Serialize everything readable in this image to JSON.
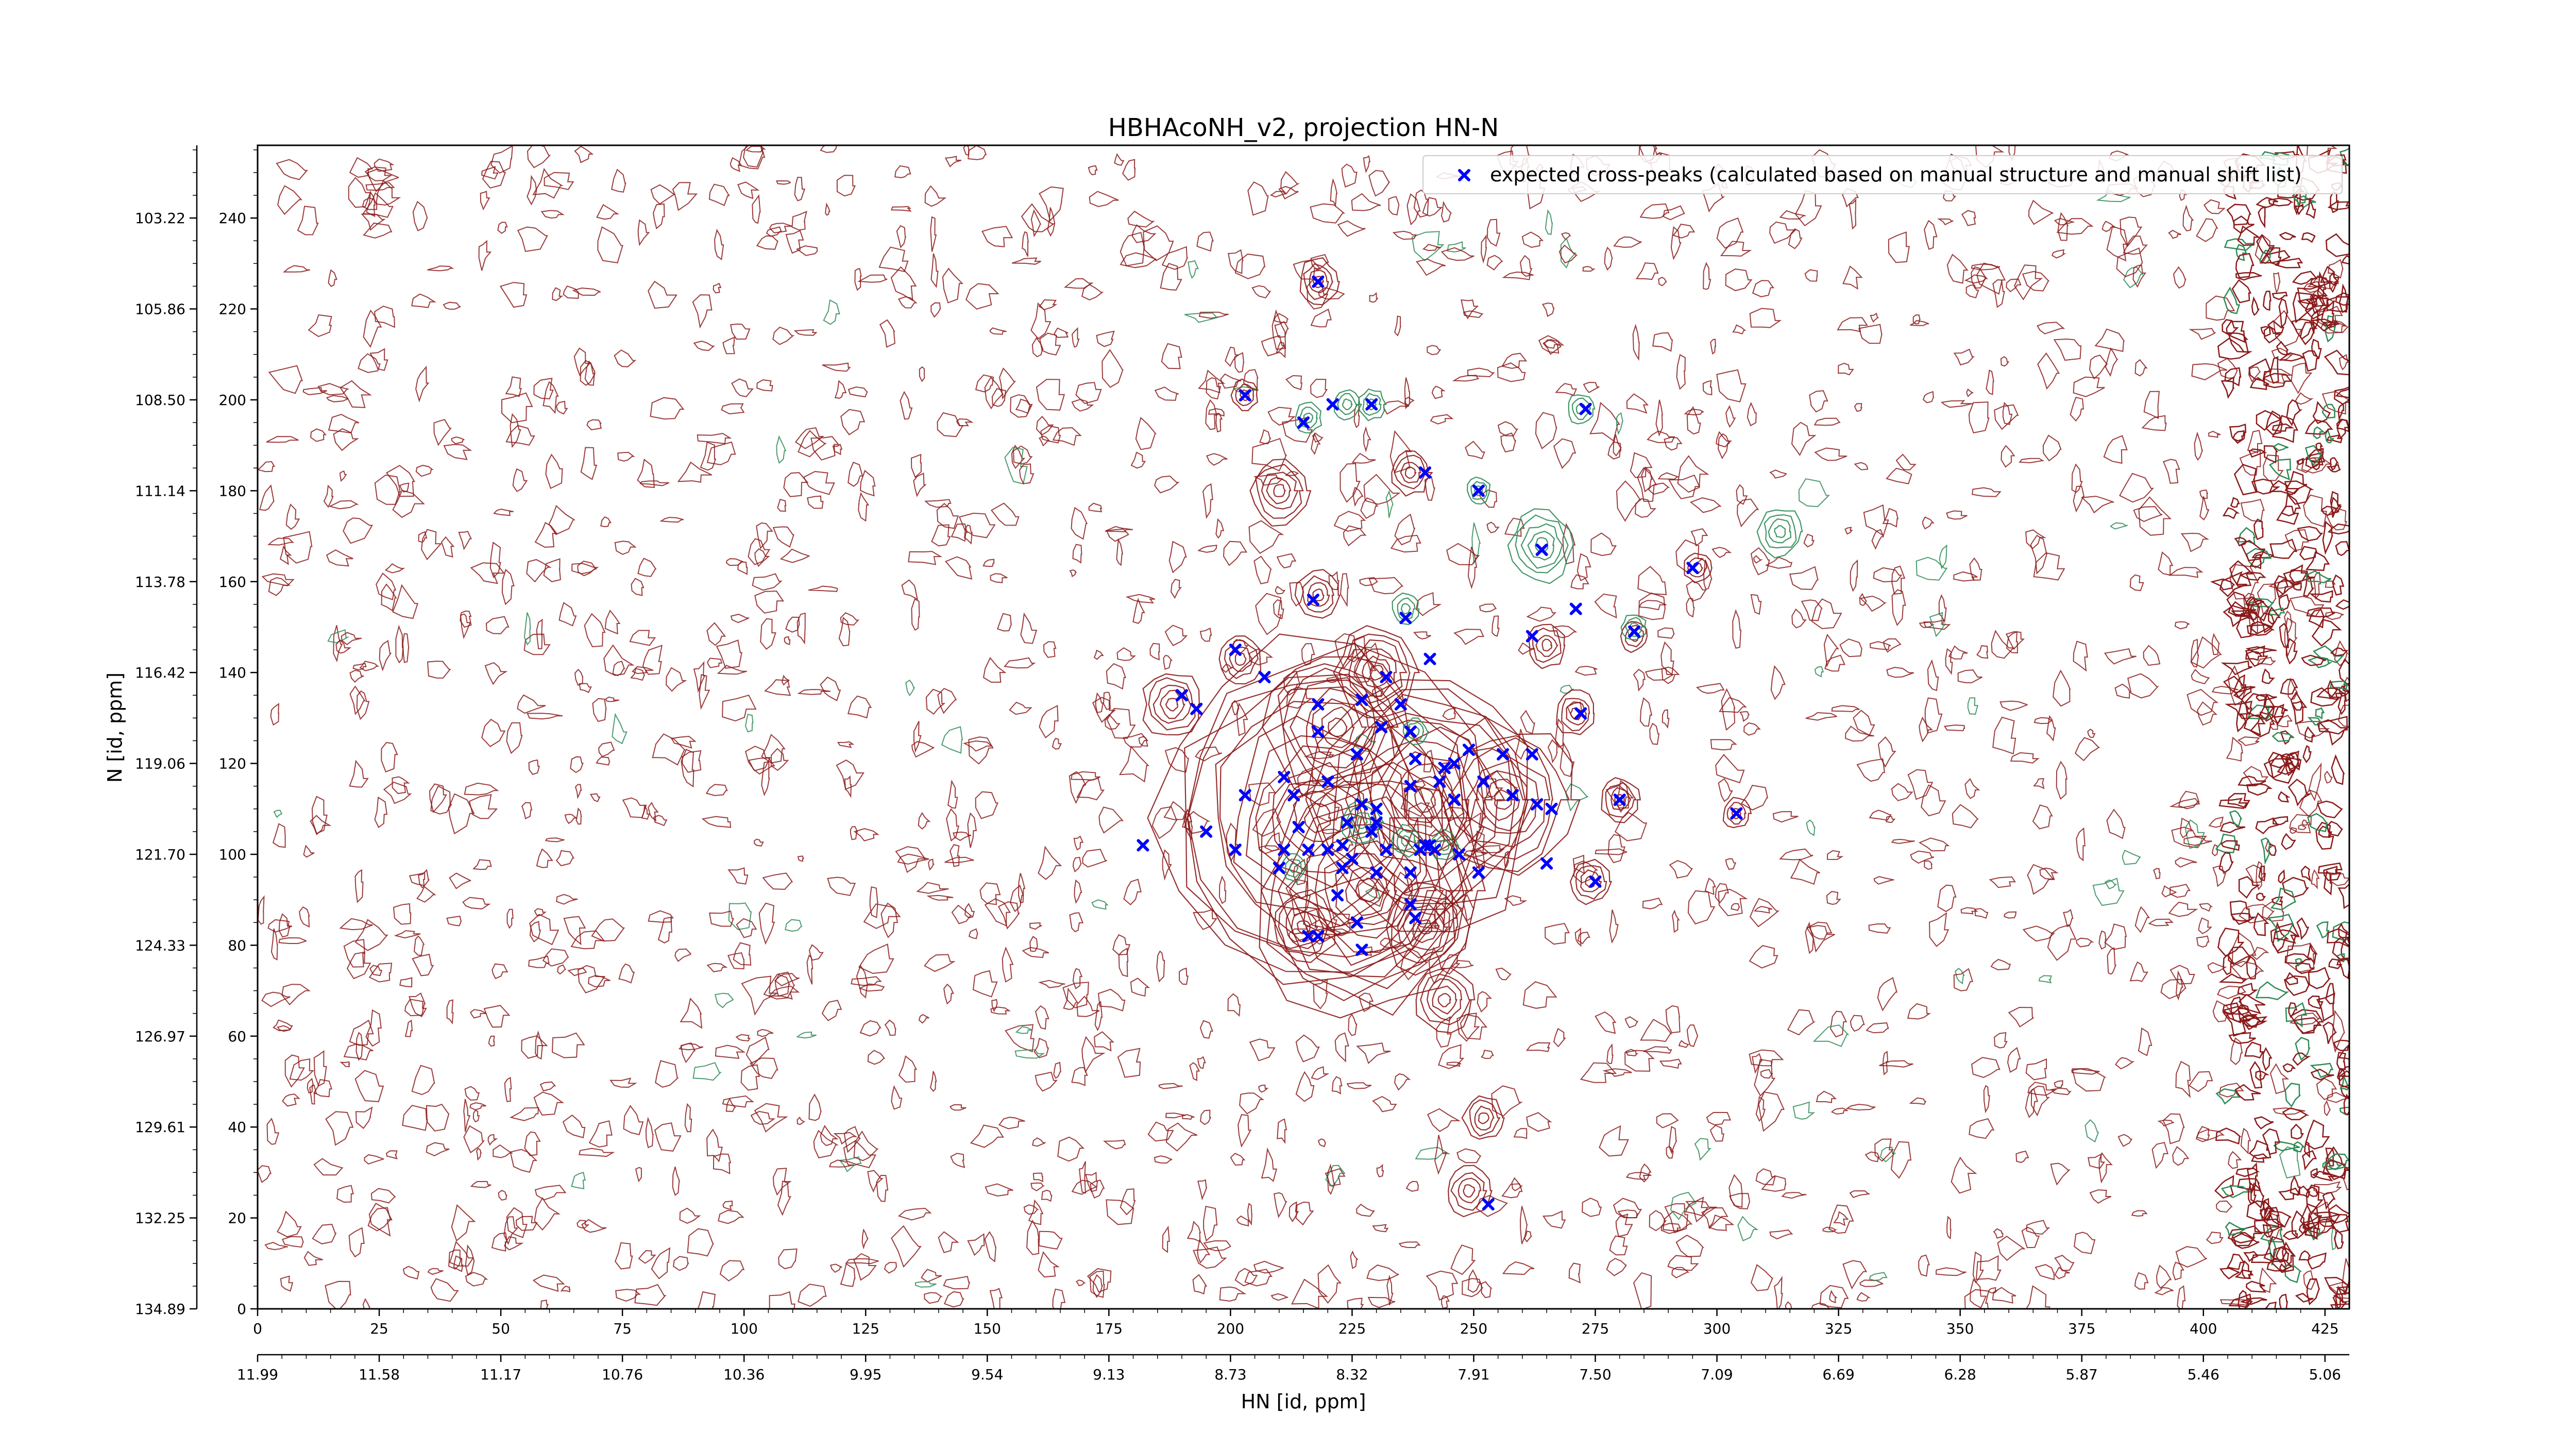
{
  "chart_data": {
    "type": "scatter",
    "title": "HBHAcoNH_v2, projection HN-N",
    "xlabel": "HN [id, ppm]",
    "ylabel": "N [id, ppm]",
    "xlim": [
      0,
      430
    ],
    "ylim": [
      0,
      256
    ],
    "grid": false,
    "legend_position": "top-right",
    "x_ticks_index": [
      0,
      25,
      50,
      75,
      100,
      125,
      150,
      175,
      200,
      225,
      250,
      275,
      300,
      325,
      350,
      375,
      400,
      425
    ],
    "x_ticks_ppm": [
      "11.99",
      "11.58",
      "11.17",
      "10.76",
      "10.36",
      "9.95",
      "9.54",
      "9.13",
      "8.73",
      "8.32",
      "7.91",
      "7.50",
      "7.09",
      "6.69",
      "6.28",
      "5.87",
      "5.46",
      "5.06"
    ],
    "y_ticks_index": [
      0,
      20,
      40,
      60,
      80,
      100,
      120,
      140,
      160,
      180,
      200,
      220,
      240
    ],
    "y_ticks_ppm": [
      "134.89",
      "132.25",
      "129.61",
      "126.97",
      "124.33",
      "121.70",
      "119.06",
      "116.42",
      "113.78",
      "111.14",
      "108.50",
      "105.86",
      "103.22"
    ],
    "colors": {
      "expected_peak": "#0000ff",
      "positive_contour": "#8b1a1a",
      "negative_contour": "#2e8b57"
    },
    "series": [
      {
        "name": "expected cross-peaks (calculated based on manual structure and manual shift list)",
        "marker": "x",
        "x": [
          218,
          203,
          215,
          221,
          229,
          240,
          251,
          273,
          264,
          217,
          236,
          271,
          295,
          262,
          283,
          201,
          207,
          241,
          227,
          232,
          235,
          190,
          193,
          218,
          231,
          226,
          237,
          272,
          262,
          218,
          249,
          256,
          244,
          246,
          238,
          203,
          213,
          211,
          220,
          227,
          230,
          237,
          243,
          246,
          252,
          258,
          263,
          266,
          280,
          304,
          230,
          224,
          211,
          223,
          229,
          214,
          216,
          220,
          225,
          232,
          239,
          241,
          240,
          201,
          182,
          195,
          210,
          223,
          230,
          237,
          242,
          247,
          251,
          265,
          275,
          222,
          237,
          226,
          216,
          218,
          227,
          238,
          253
        ],
        "y": [
          226,
          201,
          195,
          199,
          199,
          184,
          180,
          198,
          167,
          156,
          152,
          154,
          163,
          148,
          149,
          145,
          139,
          143,
          134,
          139,
          133,
          135,
          132,
          133,
          128,
          122,
          127,
          131,
          122,
          127,
          123,
          122,
          119,
          120,
          121,
          113,
          113,
          117,
          116,
          111,
          110,
          115,
          116,
          112,
          116,
          113,
          111,
          110,
          112,
          109,
          107,
          107,
          101,
          102,
          105,
          106,
          101,
          101,
          99,
          101,
          101,
          102,
          102,
          101,
          102,
          105,
          97,
          97,
          96,
          96,
          101,
          100,
          96,
          98,
          94,
          91,
          89,
          85,
          82,
          82,
          79,
          86,
          23
        ]
      }
    ],
    "contours": {
      "positive_clusters": [
        {
          "x": 218,
          "y": 226,
          "size": 6
        },
        {
          "x": 203,
          "y": 201,
          "size": 5
        },
        {
          "x": 237,
          "y": 184,
          "size": 6
        },
        {
          "x": 210,
          "y": 180,
          "size": 8
        },
        {
          "x": 218,
          "y": 157,
          "size": 7
        },
        {
          "x": 202,
          "y": 143,
          "size": 7
        },
        {
          "x": 188,
          "y": 133,
          "size": 8
        },
        {
          "x": 271,
          "y": 131,
          "size": 6
        },
        {
          "x": 280,
          "y": 112,
          "size": 6
        },
        {
          "x": 296,
          "y": 163,
          "size": 5
        },
        {
          "x": 304,
          "y": 109,
          "size": 5
        },
        {
          "x": 274,
          "y": 94,
          "size": 6
        },
        {
          "x": 244,
          "y": 68,
          "size": 8
        },
        {
          "x": 249,
          "y": 26,
          "size": 7
        },
        {
          "x": 252,
          "y": 42,
          "size": 6
        },
        {
          "x": 230,
          "y": 140,
          "size": 10
        },
        {
          "x": 240,
          "y": 112,
          "size": 18
        },
        {
          "x": 218,
          "y": 108,
          "size": 22
        },
        {
          "x": 228,
          "y": 92,
          "size": 18
        },
        {
          "x": 256,
          "y": 112,
          "size": 14
        },
        {
          "x": 265,
          "y": 146,
          "size": 6
        },
        {
          "x": 283,
          "y": 148,
          "size": 5
        },
        {
          "x": 222,
          "y": 128,
          "size": 14
        },
        {
          "x": 240,
          "y": 84,
          "size": 10
        },
        {
          "x": 215,
          "y": 84,
          "size": 9
        }
      ],
      "negative_clusters": [
        {
          "x": 224,
          "y": 199,
          "size": 5
        },
        {
          "x": 216,
          "y": 196,
          "size": 5
        },
        {
          "x": 229,
          "y": 199,
          "size": 5
        },
        {
          "x": 272,
          "y": 198,
          "size": 5
        },
        {
          "x": 251,
          "y": 180,
          "size": 4
        },
        {
          "x": 264,
          "y": 168,
          "size": 9
        },
        {
          "x": 313,
          "y": 171,
          "size": 7
        },
        {
          "x": 236,
          "y": 154,
          "size": 5
        },
        {
          "x": 283,
          "y": 150,
          "size": 4
        },
        {
          "x": 238,
          "y": 127,
          "size": 4
        },
        {
          "x": 227,
          "y": 107,
          "size": 6
        },
        {
          "x": 236,
          "y": 103,
          "size": 5
        },
        {
          "x": 244,
          "y": 102,
          "size": 5
        },
        {
          "x": 213,
          "y": 97,
          "size": 4
        }
      ]
    }
  }
}
